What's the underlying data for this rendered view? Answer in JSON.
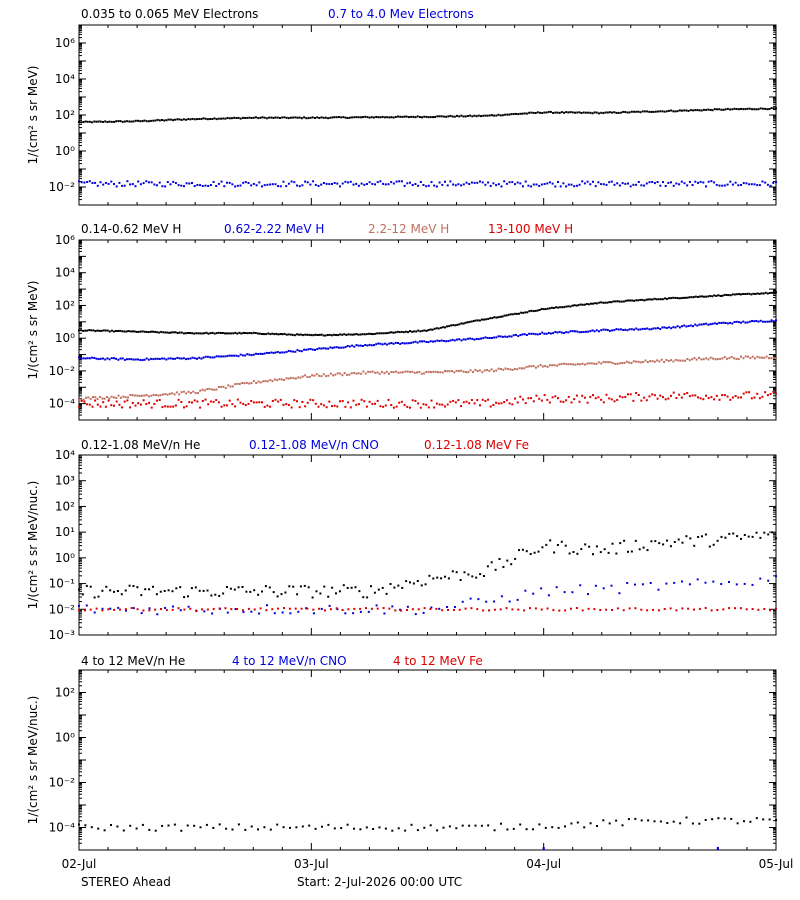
{
  "chart_data": [
    {
      "type": "scatter",
      "ylabel": "1/(cm² s sr MeV)",
      "yscale": "log",
      "ylim": [
        0.001,
        10000000
      ],
      "yticks": [
        {
          "value": 0.01,
          "label": "10⁻²"
        },
        {
          "value": 1,
          "label": "10⁰"
        },
        {
          "value": 100,
          "label": "10²"
        },
        {
          "value": 10000,
          "label": "10⁴"
        },
        {
          "value": 1000000,
          "label": "10⁶"
        }
      ],
      "series": [
        {
          "name": "0.035 to 0.065 MeV Electrons",
          "color": "#000000",
          "x": [
            0,
            0.25,
            0.5,
            0.75,
            1.0,
            1.25,
            1.5,
            1.75,
            2.0,
            2.25,
            2.5,
            2.75,
            3.0
          ],
          "y": [
            40,
            45,
            60,
            70,
            70,
            75,
            80,
            90,
            140,
            130,
            160,
            200,
            230
          ]
        },
        {
          "name": "0.7 to 4.0 Mev Electrons",
          "color": "#0000dd",
          "x": [
            0,
            0.25,
            0.5,
            0.75,
            1.0,
            1.25,
            1.5,
            1.75,
            2.0,
            2.25,
            2.5,
            2.75,
            3.0
          ],
          "y": [
            0.015,
            0.015,
            0.015,
            0.015,
            0.015,
            0.015,
            0.015,
            0.015,
            0.015,
            0.015,
            0.015,
            0.015,
            0.015
          ]
        }
      ]
    },
    {
      "type": "scatter",
      "ylabel": "1/(cm² s sr MeV)",
      "yscale": "log",
      "ylim": [
        1e-05,
        1000000
      ],
      "yticks": [
        {
          "value": 0.0001,
          "label": "10⁻⁴"
        },
        {
          "value": 0.01,
          "label": "10⁻²"
        },
        {
          "value": 1,
          "label": "10⁰"
        },
        {
          "value": 100,
          "label": "10²"
        },
        {
          "value": 10000,
          "label": "10⁴"
        },
        {
          "value": 1000000,
          "label": "10⁶"
        }
      ],
      "series": [
        {
          "name": "0.14-0.62 MeV H",
          "color": "#000000",
          "x": [
            0,
            0.25,
            0.5,
            0.75,
            1.0,
            1.25,
            1.5,
            1.75,
            2.0,
            2.25,
            2.5,
            2.75,
            3.0
          ],
          "y": [
            3,
            2.5,
            2,
            2,
            1.5,
            1.8,
            3,
            15,
            60,
            150,
            250,
            400,
            600
          ]
        },
        {
          "name": "0.62-2.22 MeV H",
          "color": "#0000dd",
          "x": [
            0,
            0.25,
            0.5,
            0.75,
            1.0,
            1.25,
            1.5,
            1.75,
            2.0,
            2.25,
            2.5,
            2.75,
            3.0
          ],
          "y": [
            0.06,
            0.05,
            0.06,
            0.1,
            0.2,
            0.4,
            0.6,
            1,
            2,
            3,
            4,
            8,
            12
          ]
        },
        {
          "name": "2.2-12 MeV H",
          "color": "#c07060",
          "x": [
            0,
            0.25,
            0.5,
            0.75,
            1.0,
            1.25,
            1.5,
            1.75,
            2.0,
            2.25,
            2.5,
            2.75,
            3.0
          ],
          "y": [
            0.0002,
            0.0003,
            0.0005,
            0.002,
            0.005,
            0.008,
            0.008,
            0.01,
            0.02,
            0.03,
            0.04,
            0.06,
            0.07
          ]
        },
        {
          "name": "13-100 MeV H",
          "color": "#dd0000",
          "x": [
            0,
            0.25,
            0.5,
            0.75,
            1.0,
            1.25,
            1.5,
            1.75,
            2.0,
            2.25,
            2.5,
            2.75,
            3.0
          ],
          "y": [
            0.0001,
            0.0001,
            0.0001,
            0.0001,
            0.0001,
            0.0001,
            0.0001,
            0.0001,
            0.0002,
            0.0002,
            0.0003,
            0.0003,
            0.0003
          ]
        }
      ]
    },
    {
      "type": "scatter",
      "ylabel": "1/(cm² s sr MeV/nuc.)",
      "yscale": "log",
      "ylim": [
        0.001,
        10000
      ],
      "yticks": [
        {
          "value": 0.001,
          "label": "10⁻³"
        },
        {
          "value": 0.01,
          "label": "10⁻²"
        },
        {
          "value": 0.1,
          "label": "10⁻¹"
        },
        {
          "value": 1,
          "label": "10⁰"
        },
        {
          "value": 10,
          "label": "10¹"
        },
        {
          "value": 100,
          "label": "10²"
        },
        {
          "value": 1000,
          "label": "10³"
        },
        {
          "value": 10000,
          "label": "10⁴"
        }
      ],
      "series": [
        {
          "name": "0.12-1.08 MeV/n He",
          "color": "#000000",
          "x": [
            0,
            0.25,
            0.5,
            0.75,
            1.0,
            1.25,
            1.5,
            1.75,
            2.0,
            2.25,
            2.5,
            2.75,
            3.0
          ],
          "y": [
            0.05,
            0.05,
            0.05,
            0.05,
            0.05,
            0.05,
            0.15,
            0.3,
            3,
            2,
            4,
            5,
            8
          ]
        },
        {
          "name": "0.12-1.08 MeV/n CNO",
          "color": "#0000dd",
          "x": [
            0,
            0.25,
            0.5,
            0.75,
            1.0,
            1.25,
            1.5,
            1.75,
            2.0,
            2.25,
            2.5,
            2.75,
            3.0
          ],
          "y": [
            0.01,
            0.01,
            0.01,
            0.01,
            0.01,
            0.01,
            0.01,
            0.02,
            0.05,
            0.06,
            0.08,
            0.1,
            0.15
          ]
        },
        {
          "name": "0.12-1.08 MeV Fe",
          "color": "#dd0000",
          "x": [
            0,
            0.25,
            0.5,
            0.75,
            1.0,
            1.25,
            1.5,
            1.75,
            2.0,
            2.25,
            2.5,
            2.75,
            3.0
          ],
          "y": [
            0.01,
            0.01,
            0.01,
            0.01,
            0.01,
            0.01,
            0.01,
            0.01,
            0.01,
            0.01,
            0.01,
            0.01,
            0.01
          ]
        }
      ]
    },
    {
      "type": "scatter",
      "ylabel": "1/(cm² s sr MeV/nuc.)",
      "yscale": "log",
      "ylim": [
        1e-05,
        1000
      ],
      "yticks": [
        {
          "value": 0.0001,
          "label": "10⁻⁴"
        },
        {
          "value": 0.01,
          "label": "10⁻²"
        },
        {
          "value": 1,
          "label": "10⁰"
        },
        {
          "value": 100,
          "label": "10²"
        }
      ],
      "series": [
        {
          "name": "4 to 12 MeV/n He",
          "color": "#000000",
          "x": [
            0,
            0.25,
            0.5,
            0.75,
            1.0,
            1.25,
            1.5,
            1.75,
            2.0,
            2.25,
            2.5,
            2.75,
            3.0
          ],
          "y": [
            0.0001,
            0.0001,
            0.0001,
            0.0001,
            0.0001,
            0.0001,
            0.0001,
            0.0001,
            0.00012,
            0.00015,
            0.0002,
            0.0002,
            0.0002
          ]
        },
        {
          "name": "4 to 12 MeV/n CNO",
          "color": "#0000dd",
          "x": [
            2.0,
            2.75
          ],
          "y": [
            1e-05,
            1e-05
          ]
        },
        {
          "name": "4 to 12 MeV Fe",
          "color": "#dd0000",
          "x": [],
          "y": []
        }
      ]
    }
  ],
  "xaxis": {
    "range": [
      "2-Jul-2026",
      "5-Jul-2026"
    ],
    "ticks": [
      {
        "value": 0,
        "label": "02-Jul"
      },
      {
        "value": 1,
        "label": "03-Jul"
      },
      {
        "value": 2,
        "label": "04-Jul"
      },
      {
        "value": 3,
        "label": "05-Jul"
      }
    ]
  },
  "footer": {
    "spacecraft": "STEREO Ahead",
    "start": "Start:  2-Jul-2026 00:00 UTC"
  }
}
